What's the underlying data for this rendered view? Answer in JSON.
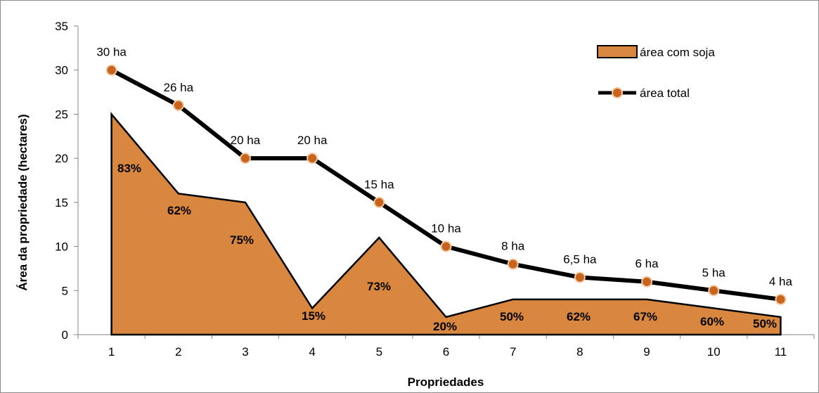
{
  "chart_data": {
    "type": "area",
    "xlabel": "Propriedades",
    "ylabel": "Área da propriedade (hectares)",
    "ylim": [
      0,
      35
    ],
    "yticks": [
      0,
      5,
      10,
      15,
      20,
      25,
      30,
      35
    ],
    "categories": [
      "1",
      "2",
      "3",
      "4",
      "5",
      "6",
      "7",
      "8",
      "9",
      "10",
      "11"
    ],
    "legend_position": "top-right",
    "grid": false,
    "series": [
      {
        "name": "área com soja",
        "kind": "area",
        "color": "#D9873F",
        "values": [
          25,
          16,
          15,
          3,
          11,
          2,
          4,
          4,
          4,
          3,
          2
        ],
        "labels": [
          "83%",
          "62%",
          "75%",
          "15%",
          "73%",
          "20%",
          "50%",
          "62%",
          "67%",
          "60%",
          "50%"
        ]
      },
      {
        "name": "área total",
        "kind": "line",
        "color": "#000000",
        "marker_color": "#C8641E",
        "values": [
          30,
          26,
          20,
          20,
          15,
          10,
          8,
          6.5,
          6,
          5,
          4
        ],
        "labels": [
          "30 ha",
          "26 ha",
          "20 ha",
          "20 ha",
          "15 ha",
          "10 ha",
          "8 ha",
          "6,5 ha",
          "6 ha",
          "5 ha",
          "4 ha"
        ]
      }
    ]
  }
}
